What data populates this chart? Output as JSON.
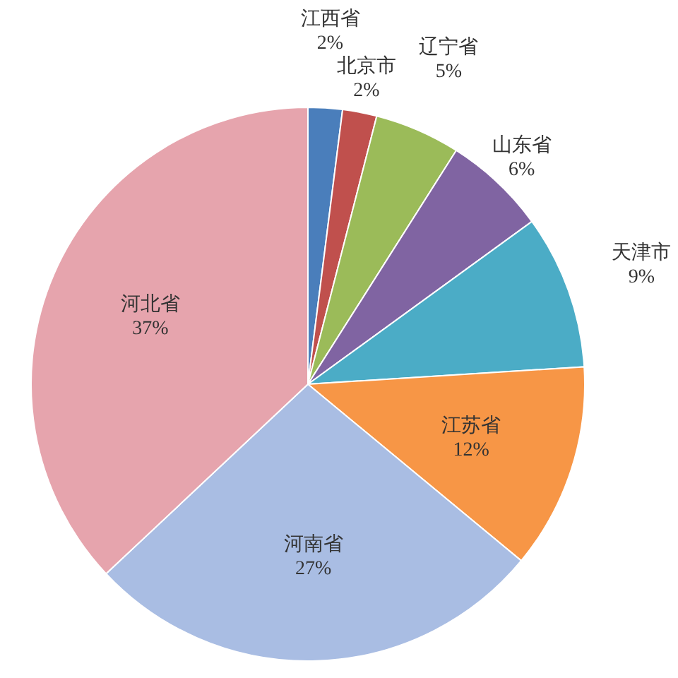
{
  "chart_data": {
    "type": "pie",
    "categories": [
      "江西省",
      "北京市",
      "辽宁省",
      "山东省",
      "天津市",
      "江苏省",
      "河南省",
      "河北省"
    ],
    "values": [
      2,
      2,
      5,
      6,
      9,
      12,
      27,
      37
    ],
    "colors": [
      "#4a7ebb",
      "#c0504d",
      "#9bbb59",
      "#8064a2",
      "#4bacc6",
      "#f79646",
      "#a9bde3",
      "#e6a4ad"
    ],
    "value_labels": [
      "2%",
      "2%",
      "5%",
      "6%",
      "9%",
      "12%",
      "27%",
      "37%"
    ]
  }
}
